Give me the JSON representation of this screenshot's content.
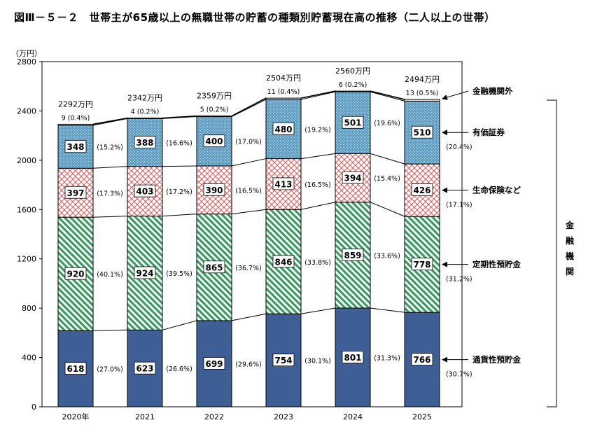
{
  "figure": {
    "title": "図Ⅲ－５－２　世帯主が65歳以上の無職世帯の貯蓄の種類別貯蓄現在高の推移（二人以上の世帯）"
  },
  "colors": {
    "tsuka": "#3d5f95",
    "teiki": "#3a9a62",
    "hoken": "#d95555",
    "yuka": "#4d9fd6",
    "other": "#555555"
  },
  "chart_data": {
    "type": "bar",
    "stacked": true,
    "unit_label": "（万円）",
    "ylim": [
      0,
      2800
    ],
    "yticks": [
      0,
      400,
      800,
      1200,
      1600,
      2000,
      2400,
      2800
    ],
    "categories": [
      "2020年",
      "2021",
      "2022",
      "2023",
      "2024",
      "2025"
    ],
    "totals": [
      "2292万円",
      "2342万円",
      "2359万円",
      "2504万円",
      "2560万円",
      "2494万円"
    ],
    "series": [
      {
        "name": "通貨性預貯金",
        "values": [
          618,
          623,
          699,
          754,
          801,
          766
        ],
        "shares": [
          "(27.0%)",
          "(26.6%)",
          "(29.6%)",
          "(30.1%)",
          "(31.3%)",
          "(30.7%)"
        ]
      },
      {
        "name": "定期性預貯金",
        "values": [
          920,
          924,
          865,
          846,
          859,
          778
        ],
        "shares": [
          "(40.1%)",
          "(39.5%)",
          "(36.7%)",
          "(33.8%)",
          "(33.6%)",
          "(31.2%)"
        ]
      },
      {
        "name": "生命保険など",
        "values": [
          397,
          403,
          390,
          413,
          394,
          426
        ],
        "shares": [
          "(17.3%)",
          "(17.2%)",
          "(16.5%)",
          "(16.5%)",
          "(15.4%)",
          "(17.1%)"
        ]
      },
      {
        "name": "有価証券",
        "values": [
          348,
          388,
          400,
          480,
          501,
          510
        ],
        "shares": [
          "(15.2%)",
          "(16.6%)",
          "(17.0%)",
          "(19.2%)",
          "(19.6%)",
          "(20.4%)"
        ]
      },
      {
        "name": "金融機関外",
        "values": [
          9,
          4,
          5,
          11,
          6,
          13
        ],
        "shares": [
          "(0.4%)",
          "(0.2%)",
          "(0.2%)",
          "(0.4%)",
          "(0.2%)",
          "(0.5%)"
        ]
      }
    ],
    "bracket_label": "金融機関"
  }
}
